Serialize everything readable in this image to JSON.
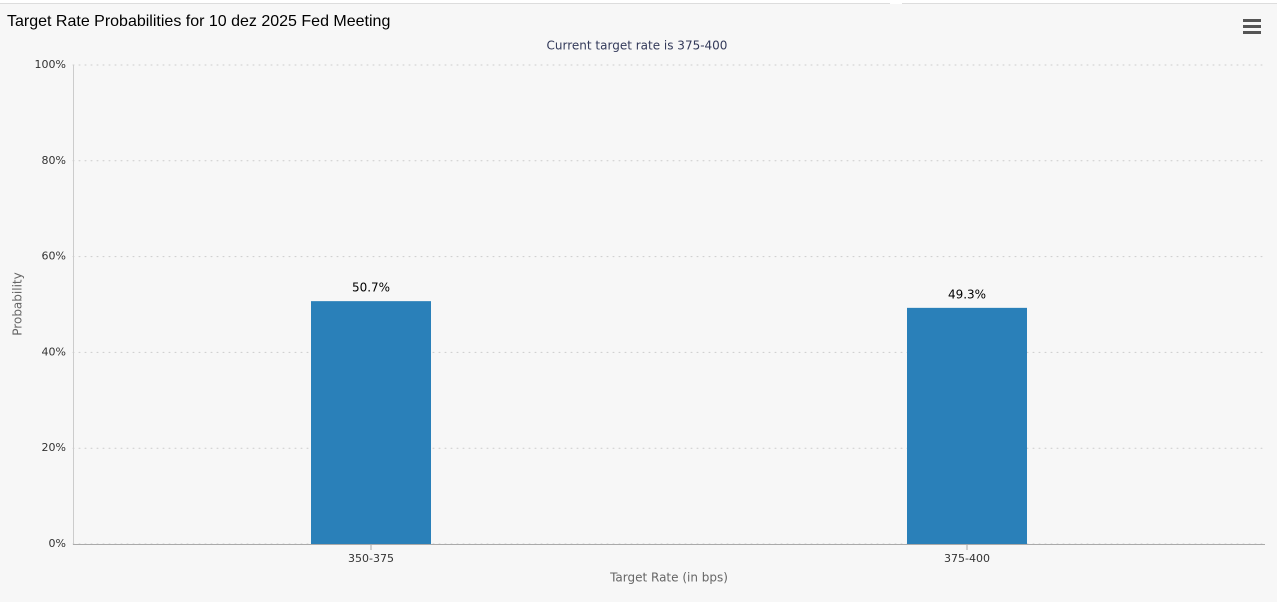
{
  "chart_data": {
    "type": "bar",
    "title": "Target Rate Probabilities for 10 dez 2025 Fed Meeting",
    "subtitle": "Current target rate is 375-400",
    "x_label": "Target Rate (in bps)",
    "y_label": "Probability",
    "categories": [
      "350-375",
      "375-400"
    ],
    "values": [
      50.7,
      49.3
    ],
    "value_labels": [
      "50.7%",
      "49.3%"
    ],
    "color": "#2a80b9",
    "ylim": [
      0,
      100
    ],
    "yticks": [
      {
        "value": 0,
        "label": "0%"
      },
      {
        "value": 20,
        "label": "20%"
      },
      {
        "value": 40,
        "label": "40%"
      },
      {
        "value": 60,
        "label": "60%"
      },
      {
        "value": 80,
        "label": "80%"
      },
      {
        "value": 100,
        "label": "100%"
      }
    ],
    "grid": true
  }
}
